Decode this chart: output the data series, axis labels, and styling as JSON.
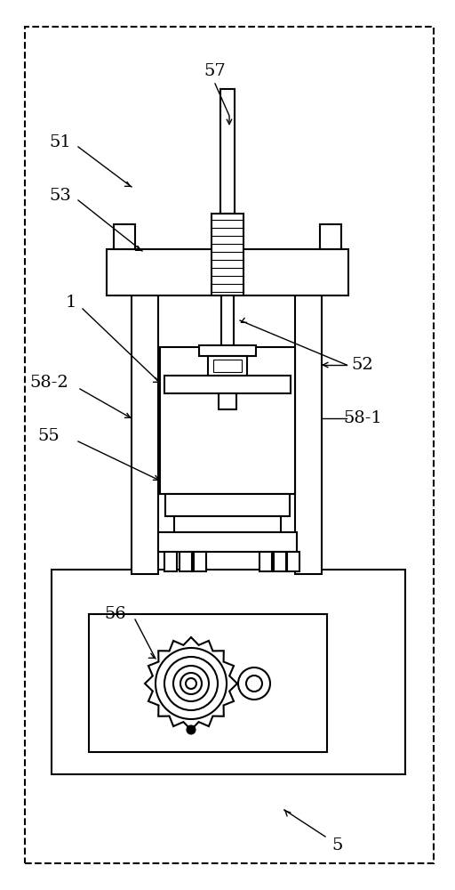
{
  "bg_color": "#ffffff",
  "line_color": "#000000",
  "fig_width": 5.12,
  "fig_height": 10.0,
  "dpi": 100,
  "lw": 1.5,
  "label_fontsize": 14
}
